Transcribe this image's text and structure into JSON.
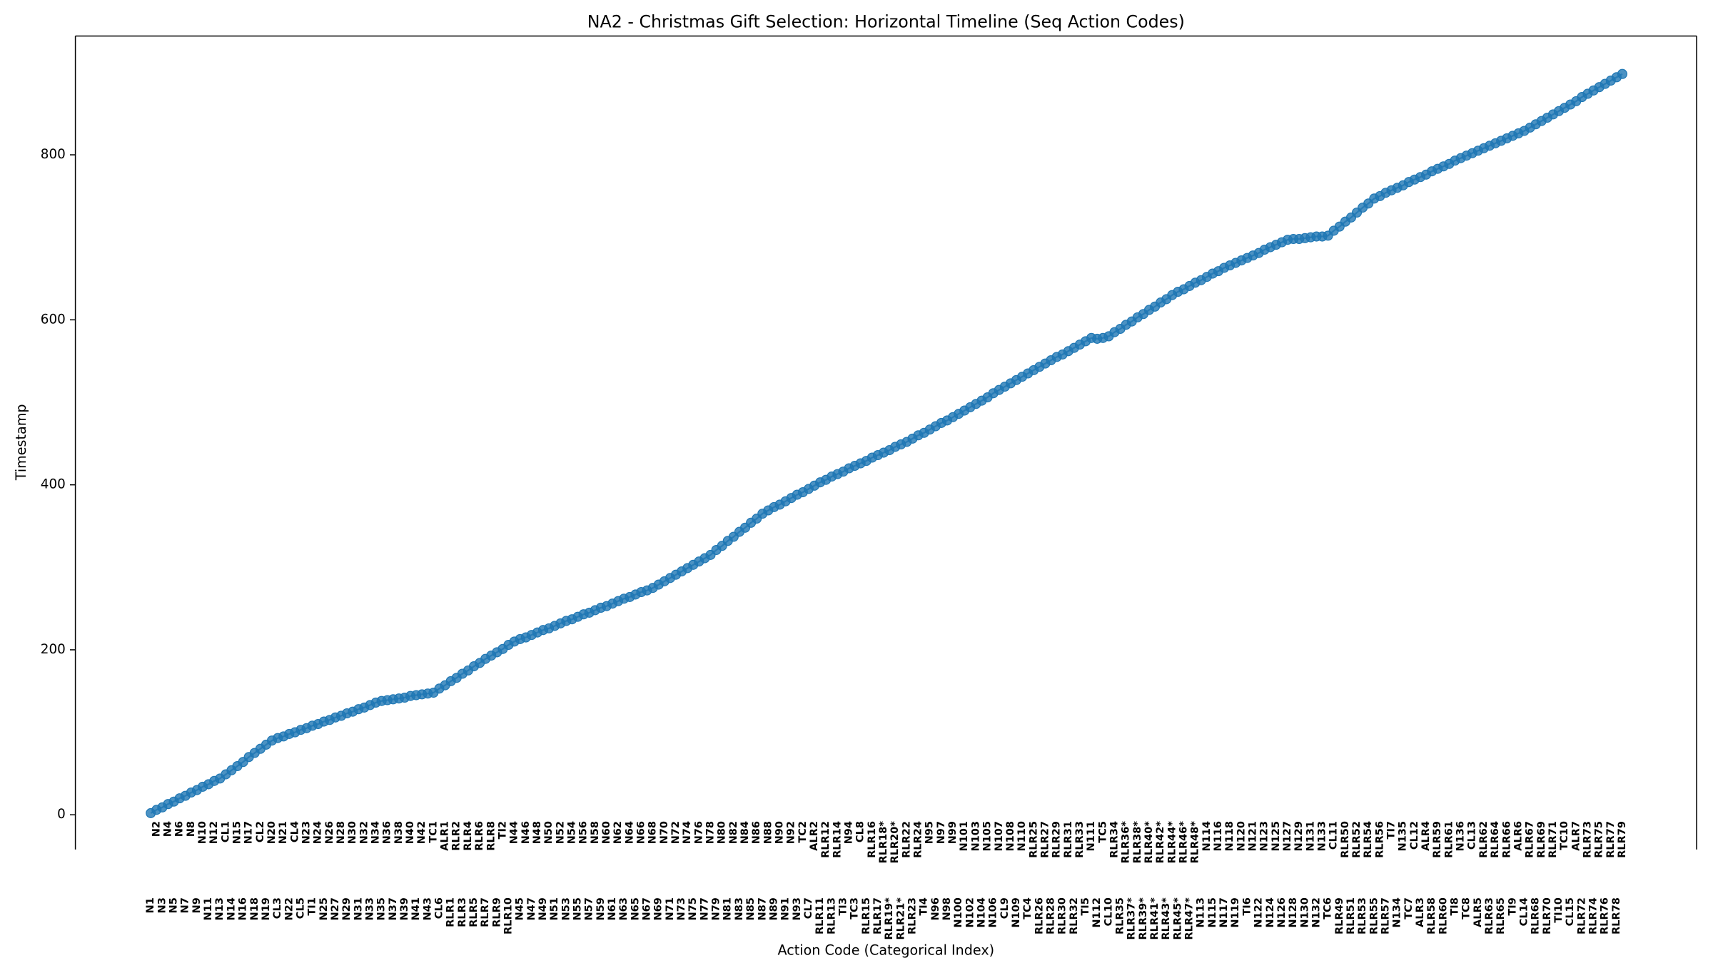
{
  "chart_data": {
    "type": "line",
    "title": "NA2 - Christmas Gift Selection: Horizontal Timeline (Seq Action Codes)",
    "x_label": "Action Code (Categorical Index)",
    "y_label": "Timestamp",
    "color": "#1f77b4",
    "ylim": [
      -42,
      944
    ],
    "yticks": [
      0,
      200,
      400,
      600,
      800
    ],
    "categories": [
      "N1",
      "N2",
      "N3",
      "N4",
      "N5",
      "N6",
      "N7",
      "N8",
      "N9",
      "N10",
      "N11",
      "N12",
      "N13",
      "CL1",
      "N14",
      "N15",
      "N16",
      "N17",
      "N18",
      "CL2",
      "N19",
      "N20",
      "CL3",
      "N21",
      "N22",
      "CL4",
      "CL5",
      "N23",
      "TI1",
      "N24",
      "N25",
      "N26",
      "N27",
      "N28",
      "N29",
      "N30",
      "N31",
      "N32",
      "N33",
      "N34",
      "N35",
      "N36",
      "N37",
      "N38",
      "N39",
      "N40",
      "N41",
      "N42",
      "N43",
      "TC1",
      "CL6",
      "ALR1",
      "RLR1",
      "RLR2",
      "RLR3",
      "RLR4",
      "RLR5",
      "RLR6",
      "RLR7",
      "RLR8",
      "RLR9",
      "TI2",
      "RLR10",
      "N44",
      "N45",
      "N46",
      "N47",
      "N48",
      "N49",
      "N50",
      "N51",
      "N52",
      "N53",
      "N54",
      "N55",
      "N56",
      "N57",
      "N58",
      "N59",
      "N60",
      "N61",
      "N62",
      "N63",
      "N64",
      "N65",
      "N66",
      "N67",
      "N68",
      "N69",
      "N70",
      "N71",
      "N72",
      "N73",
      "N74",
      "N75",
      "N76",
      "N77",
      "N78",
      "N79",
      "N80",
      "N81",
      "N82",
      "N83",
      "N84",
      "N85",
      "N86",
      "N87",
      "N88",
      "N89",
      "N90",
      "N91",
      "N92",
      "N93",
      "TC2",
      "CL7",
      "ALR2",
      "RLR11",
      "RLR12",
      "RLR13",
      "RLR14",
      "TI3",
      "N94",
      "TC3",
      "CL8",
      "RLR15",
      "RLR16",
      "RLR17",
      "RLR18*",
      "RLR19*",
      "RLR20*",
      "RLR21*",
      "RLR22",
      "RLR23",
      "RLR24",
      "TI4",
      "N95",
      "N96",
      "N97",
      "N98",
      "N99",
      "N100",
      "N101",
      "N102",
      "N103",
      "N104",
      "N105",
      "N106",
      "N107",
      "CL9",
      "N108",
      "N109",
      "N110",
      "TC4",
      "RLR25",
      "RLR26",
      "RLR27",
      "RLR28",
      "RLR29",
      "RLR30",
      "RLR31",
      "RLR32",
      "RLR33",
      "TI5",
      "N111",
      "N112",
      "TC5",
      "CL10",
      "RLR34",
      "RLR35",
      "RLR36*",
      "RLR37*",
      "RLR38*",
      "RLR39*",
      "RLR40*",
      "RLR41*",
      "RLR42*",
      "RLR43*",
      "RLR44*",
      "RLR45*",
      "RLR46*",
      "RLR47*",
      "RLR48*",
      "N113",
      "N114",
      "N115",
      "N116",
      "N117",
      "N118",
      "N119",
      "N120",
      "TI6",
      "N121",
      "N122",
      "N123",
      "N124",
      "N125",
      "N126",
      "N127",
      "N128",
      "N129",
      "N130",
      "N131",
      "N132",
      "N133",
      "TC6",
      "CL11",
      "RLR49",
      "RLR50",
      "RLR51",
      "RLR52",
      "RLR53",
      "RLR54",
      "RLR55",
      "RLR56",
      "RLR57",
      "TI7",
      "N134",
      "N135",
      "TC7",
      "CL12",
      "ALR3",
      "ALR4",
      "RLR58",
      "RLR59",
      "RLR60",
      "RLR61",
      "TI8",
      "N136",
      "TC8",
      "CL13",
      "ALR5",
      "RLR62",
      "RLR63",
      "RLR64",
      "RLR65",
      "RLR66",
      "TI9",
      "ALR6",
      "CL14",
      "RLR67",
      "RLR68",
      "RLR69",
      "RLR70",
      "RLR71",
      "TI10",
      "TC10",
      "CL15",
      "ALR7",
      "RLR72",
      "RLR73",
      "RLR74",
      "RLR75",
      "RLR76",
      "RLR77",
      "RLR78",
      "RLR79"
    ],
    "values": [
      2,
      6,
      9,
      13,
      16,
      20,
      23,
      27,
      30,
      34,
      37,
      41,
      44,
      49,
      54,
      59,
      64,
      70,
      75,
      80,
      85,
      90,
      93,
      95,
      98,
      100,
      103,
      105,
      108,
      110,
      113,
      115,
      118,
      120,
      123,
      125,
      128,
      130,
      133,
      136,
      138,
      139,
      140,
      141,
      142,
      144,
      145,
      146,
      147,
      148,
      153,
      157,
      162,
      166,
      171,
      175,
      180,
      184,
      189,
      193,
      197,
      201,
      206,
      210,
      213,
      215,
      218,
      221,
      224,
      226,
      229,
      232,
      235,
      237,
      240,
      243,
      245,
      248,
      251,
      253,
      256,
      259,
      262,
      264,
      267,
      270,
      272,
      275,
      279,
      283,
      287,
      291,
      295,
      299,
      303,
      307,
      311,
      315,
      321,
      326,
      332,
      337,
      343,
      348,
      354,
      359,
      365,
      369,
      373,
      376,
      380,
      384,
      388,
      391,
      395,
      399,
      403,
      406,
      410,
      413,
      416,
      420,
      423,
      426,
      429,
      433,
      436,
      439,
      442,
      446,
      449,
      452,
      456,
      460,
      463,
      467,
      471,
      475,
      478,
      482,
      486,
      490,
      494,
      498,
      502,
      506,
      511,
      515,
      519,
      523,
      527,
      531,
      535,
      539,
      543,
      547,
      551,
      555,
      558,
      562,
      566,
      570,
      574,
      578,
      577,
      578,
      580,
      585,
      589,
      594,
      598,
      603,
      607,
      612,
      616,
      621,
      625,
      630,
      634,
      637,
      641,
      645,
      648,
      652,
      656,
      659,
      663,
      666,
      669,
      672,
      675,
      678,
      681,
      685,
      688,
      691,
      694,
      697,
      698,
      698,
      699,
      700,
      701,
      701,
      702,
      708,
      713,
      719,
      724,
      730,
      736,
      741,
      747,
      750,
      754,
      757,
      760,
      763,
      767,
      770,
      773,
      776,
      780,
      783,
      786,
      789,
      793,
      796,
      799,
      802,
      805,
      808,
      811,
      814,
      817,
      820,
      823,
      826,
      829,
      833,
      837,
      841,
      845,
      849,
      853,
      857,
      861,
      865,
      870,
      874,
      878,
      882,
      886,
      890,
      894,
      898
    ]
  }
}
